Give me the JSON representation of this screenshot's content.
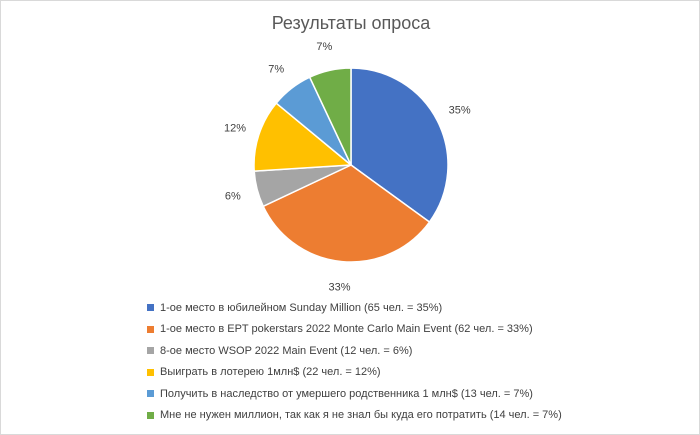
{
  "chart_data": {
    "type": "pie",
    "title": "Результаты опроса",
    "series": [
      {
        "label": "1-ое место в юбилейном Sunday Million (65 чел. = 35%)",
        "value": 35,
        "value_label": "35%",
        "color": "#4472C4"
      },
      {
        "label": "1-ое место в EPT pokerstars 2022 Monte Carlo Main Event (62 чел. = 33%)",
        "value": 33,
        "value_label": "33%",
        "color": "#ED7D31"
      },
      {
        "label": "8-ое место WSOP 2022 Main Event  (12 чел. = 6%)",
        "value": 6,
        "value_label": "6%",
        "color": "#A5A5A5"
      },
      {
        "label": "Выиграть в лотерею 1млн$ (22 чел. = 12%)",
        "value": 12,
        "value_label": "12%",
        "color": "#FFC000"
      },
      {
        "label": "Получить в наследство от умершего родственника 1 млн$ (13 чел. = 7%)",
        "value": 7,
        "value_label": "7%",
        "color": "#5B9BD5"
      },
      {
        "label": "Мне не нужен миллион, так как я не знал бы куда его потратить (14 чел. = 7%)",
        "value": 7,
        "value_label": "7%",
        "color": "#70AD47"
      }
    ],
    "start_angle_deg": 0,
    "direction": "clockwise",
    "legend_position": "bottom"
  }
}
